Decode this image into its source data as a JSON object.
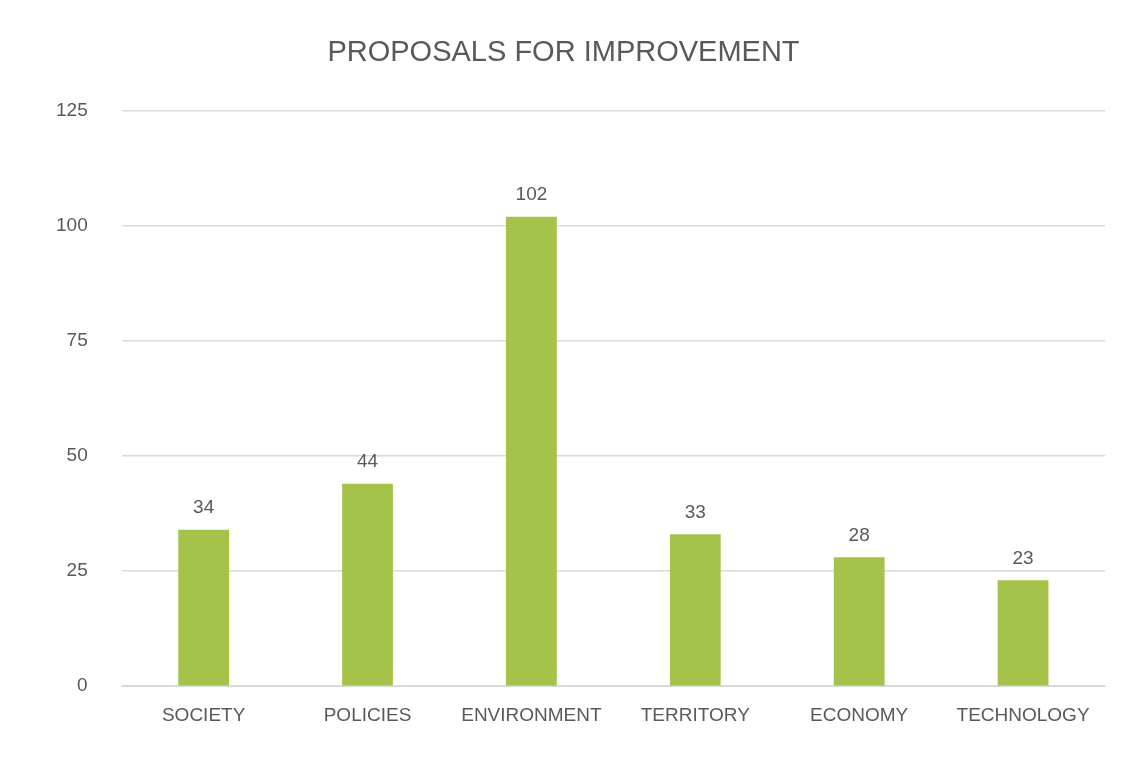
{
  "chart_data": {
    "type": "bar",
    "title": "PROPOSALS FOR IMPROVEMENT",
    "categories": [
      "SOCIETY",
      "POLICIES",
      "ENVIRONMENT",
      "TERRITORY",
      "ECONOMY",
      "TECHNOLOGY"
    ],
    "values": [
      34,
      44,
      102,
      33,
      28,
      23
    ],
    "color": "#a5c34a",
    "ylim": [
      0,
      125
    ],
    "yticks": [
      0,
      25,
      50,
      75,
      100,
      125
    ],
    "grid": "y",
    "legend": false,
    "data_labels": true
  }
}
